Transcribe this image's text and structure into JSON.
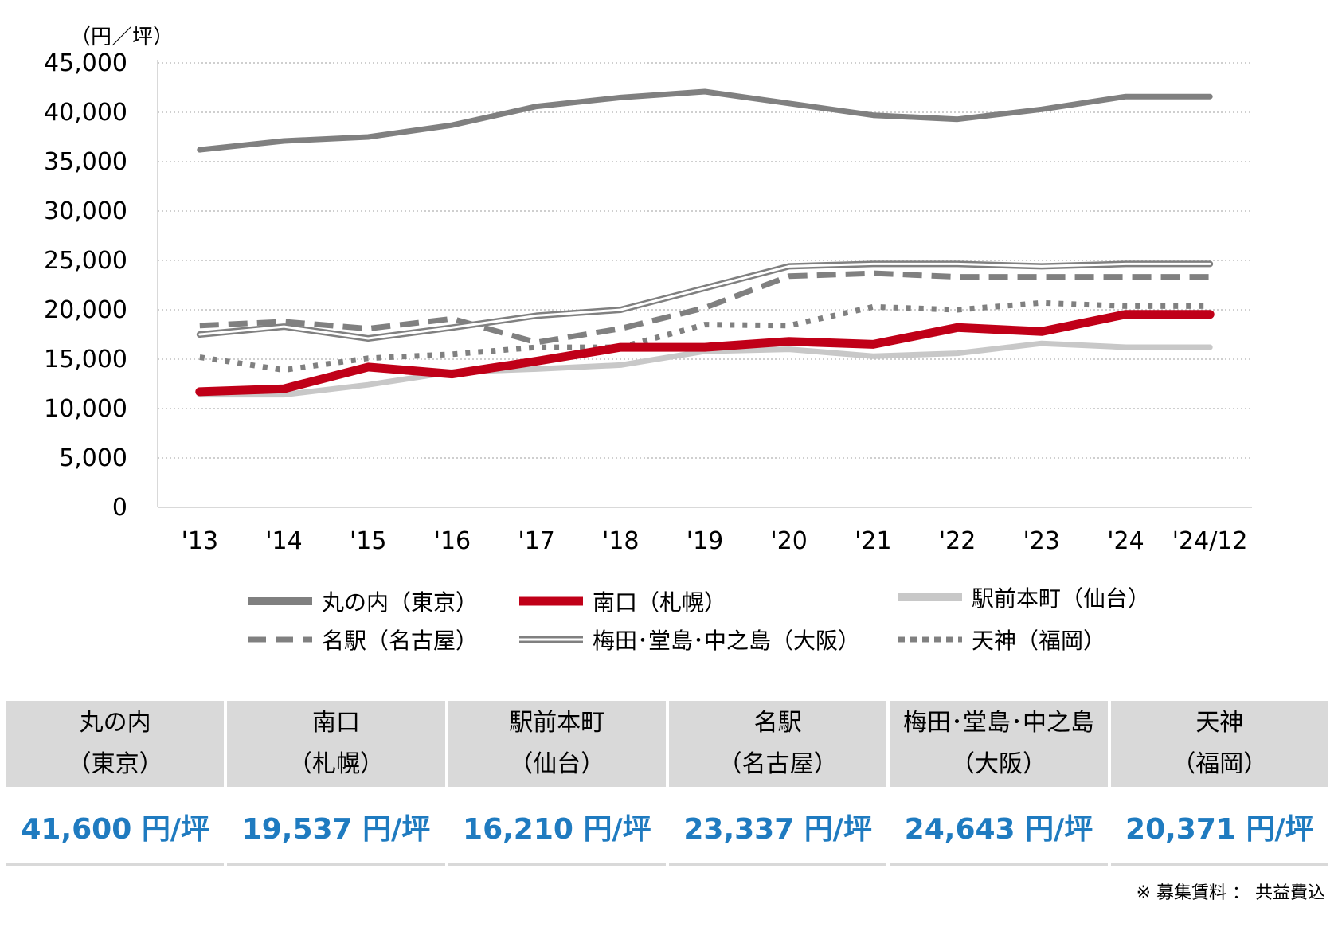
{
  "chart_data": {
    "type": "line",
    "title": "",
    "unit_label": "（円／坪）",
    "xlabel": "",
    "ylabel": "",
    "ylim": [
      0,
      45000
    ],
    "yticks": [
      0,
      5000,
      10000,
      15000,
      20000,
      25000,
      30000,
      35000,
      40000,
      45000
    ],
    "ytick_labels": [
      "0",
      "5,000",
      "10,000",
      "15,000",
      "20,000",
      "25,000",
      "30,000",
      "35,000",
      "40,000",
      "45,000"
    ],
    "grid": "horizontal-dotted",
    "legend_position": "bottom",
    "categories": [
      "'13",
      "'14",
      "'15",
      "'16",
      "'17",
      "'18",
      "'19",
      "'20",
      "'21",
      "'22",
      "'23",
      "'24",
      "'24/12"
    ],
    "series": [
      {
        "name": "丸の内（東京）",
        "style": "thick-solid",
        "color": "#808080",
        "values": [
          36200,
          37100,
          37500,
          38700,
          40600,
          41500,
          42100,
          40900,
          39700,
          39300,
          40300,
          41600,
          41600
        ]
      },
      {
        "name": "南口（札幌）",
        "style": "extra-thick-solid",
        "color": "#c00018",
        "values": [
          11700,
          12000,
          14200,
          13500,
          14800,
          16200,
          16200,
          16800,
          16500,
          18200,
          17800,
          19537,
          19537
        ]
      },
      {
        "name": "駅前本町（仙台）",
        "style": "thick-solid",
        "color": "#c8c8c8",
        "values": [
          11400,
          11400,
          12400,
          13700,
          14000,
          14400,
          15800,
          16000,
          15300,
          15600,
          16600,
          16210,
          16210
        ]
      },
      {
        "name": "名駅（名古屋）",
        "style": "dashed",
        "color": "#808080",
        "values": [
          18400,
          18800,
          18100,
          19100,
          16700,
          18100,
          20200,
          23400,
          23700,
          23337,
          23337,
          23337,
          23337
        ]
      },
      {
        "name": "梅田･堂島･中之島（大阪）",
        "style": "double-line",
        "color": "#808080",
        "values": [
          17500,
          18300,
          17100,
          18200,
          19400,
          20000,
          22200,
          24400,
          24643,
          24643,
          24400,
          24643,
          24643
        ]
      },
      {
        "name": "天神（福岡）",
        "style": "dotted",
        "color": "#808080",
        "values": [
          15200,
          13900,
          15100,
          15500,
          16200,
          16200,
          18500,
          18400,
          20300,
          20000,
          20700,
          20371,
          20371
        ]
      }
    ]
  },
  "table": {
    "columns": [
      {
        "name1": "丸の内",
        "name2": "（東京）",
        "value": "41,600 円/坪"
      },
      {
        "name1": "南口",
        "name2": "（札幌）",
        "value": "19,537 円/坪"
      },
      {
        "name1": "駅前本町",
        "name2": "（仙台）",
        "value": "16,210 円/坪"
      },
      {
        "name1": "名駅",
        "name2": "（名古屋）",
        "value": "23,337 円/坪"
      },
      {
        "name1": "梅田･堂島･中之島",
        "name2": "（大阪）",
        "value": "24,643 円/坪"
      },
      {
        "name1": "天神",
        "name2": "（福岡）",
        "value": "20,371 円/坪"
      }
    ]
  },
  "note": "※  募集賃料 ： 共益費込"
}
